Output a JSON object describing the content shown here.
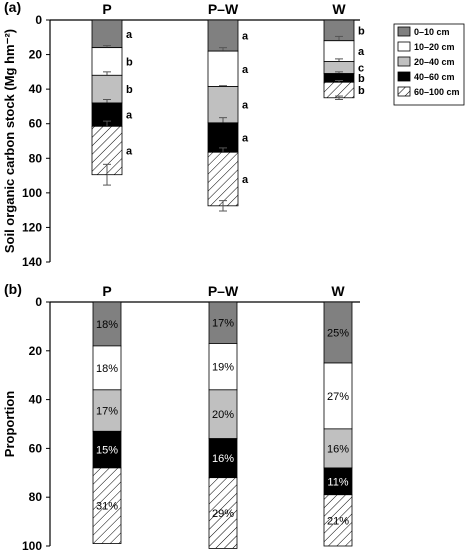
{
  "chart_data": [
    {
      "panel_label": "(a)",
      "type": "stacked-bar",
      "ylabel": "Soil organic carbon stock (Mg hm⁻²)",
      "ylim": [
        0,
        140
      ],
      "y_axis_inverted": true,
      "yticks": [
        0,
        20,
        40,
        60,
        80,
        100,
        120,
        140
      ],
      "categories": [
        "P",
        "P–W",
        "W"
      ],
      "series": [
        {
          "name": "0–10 cm",
          "values": [
            16,
            18,
            12
          ]
        },
        {
          "name": "10–20 cm",
          "values": [
            16,
            20.5,
            12
          ]
        },
        {
          "name": "20–40 cm",
          "values": [
            16,
            21,
            7
          ]
        },
        {
          "name": "40–60 cm",
          "values": [
            13.5,
            17,
            5
          ]
        },
        {
          "name": "60–100 cm",
          "values": [
            28,
            31,
            9
          ]
        }
      ],
      "error_bars": [
        [
          1.2,
          2,
          2,
          3,
          6
        ],
        [
          2,
          0.5,
          3,
          2.5,
          3
        ],
        [
          2.5,
          1.5,
          1,
          1,
          1
        ]
      ],
      "significance_letters": [
        [
          "a",
          "b",
          "b",
          "a",
          "a"
        ],
        [
          "a",
          "a",
          "a",
          "a",
          "a"
        ],
        [
          "b",
          "a",
          "c",
          "b",
          "b"
        ]
      ],
      "legend": {
        "position": "top-right",
        "entries": [
          "0–10 cm",
          "10–20 cm",
          "20–40 cm",
          "40–60 cm",
          "60–100 cm"
        ]
      }
    },
    {
      "panel_label": "(b)",
      "type": "stacked-bar",
      "ylabel": "Proportion",
      "ylim": [
        0,
        100
      ],
      "y_axis_inverted": true,
      "yticks": [
        0,
        20,
        40,
        60,
        80,
        100
      ],
      "categories": [
        "P",
        "P–W",
        "W"
      ],
      "series": [
        {
          "name": "0–10 cm",
          "values": [
            18,
            17,
            25
          ]
        },
        {
          "name": "10–20 cm",
          "values": [
            18,
            19,
            27
          ]
        },
        {
          "name": "20–40 cm",
          "values": [
            17,
            20,
            16
          ]
        },
        {
          "name": "40–60 cm",
          "values": [
            15,
            16,
            11
          ]
        },
        {
          "name": "60–100 cm",
          "values": [
            31,
            29,
            21
          ]
        }
      ],
      "labels": [
        [
          "18%",
          "18%",
          "17%",
          "15%",
          "31%"
        ],
        [
          "17%",
          "19%",
          "20%",
          "16%",
          "29%"
        ],
        [
          "25%",
          "27%",
          "16%",
          "11%",
          "21%"
        ]
      ]
    }
  ],
  "colors": {
    "layer_0_10": "#808080",
    "layer_10_20": "#ffffff",
    "layer_20_40": "#c0c0c0",
    "layer_40_60": "#000000",
    "layer_60_100": "hatch"
  }
}
